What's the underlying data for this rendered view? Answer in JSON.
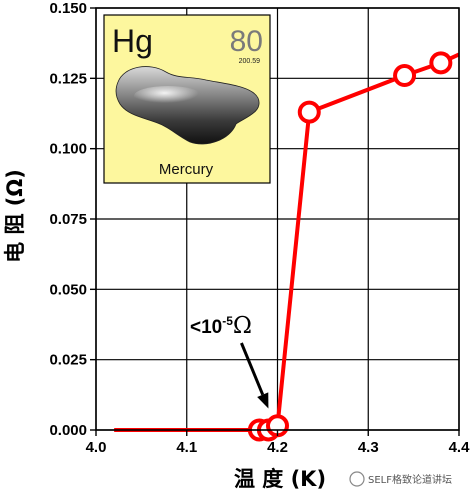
{
  "chart_data": {
    "type": "line",
    "xlabel": "温 度 (K)",
    "ylabel": "电 阻 (Ω)",
    "xlim": [
      4.0,
      4.4
    ],
    "ylim": [
      0.0,
      0.15
    ],
    "xticks": [
      4.0,
      4.1,
      4.2,
      4.3,
      4.4
    ],
    "xtick_labels": [
      "4.0",
      "4.1",
      "4.2",
      "4.3",
      "4.4"
    ],
    "yticks": [
      0.0,
      0.025,
      0.05,
      0.075,
      0.1,
      0.125,
      0.15
    ],
    "ytick_labels": [
      "0.000",
      "0.025",
      "0.050",
      "0.075",
      "0.100",
      "0.125",
      "0.150"
    ],
    "grid": true,
    "series": [
      {
        "line_x": [
          4.02,
          4.18,
          4.19,
          4.2,
          4.235,
          4.34,
          4.38,
          4.4
        ],
        "line_y": [
          0.0,
          0.0,
          0.0,
          0.0015,
          0.113,
          0.126,
          0.1305,
          0.1335
        ],
        "marker_x": [
          4.18,
          4.19,
          4.2,
          4.235,
          4.34,
          4.38
        ],
        "marker_y": [
          0.0,
          0.0,
          0.0015,
          0.113,
          0.126,
          0.1305
        ],
        "color": "#ff0000"
      }
    ],
    "annotation": {
      "text_base": "<10",
      "text_exp": "-5",
      "text_unit": "Ω",
      "arrow_target": [
        4.19,
        0.003
      ]
    },
    "inset": {
      "symbol": "Hg",
      "number": "80",
      "mass": "200.59",
      "name": "Mercury",
      "background": "#fdf79e"
    }
  },
  "watermark": "SELF格致论道讲坛"
}
